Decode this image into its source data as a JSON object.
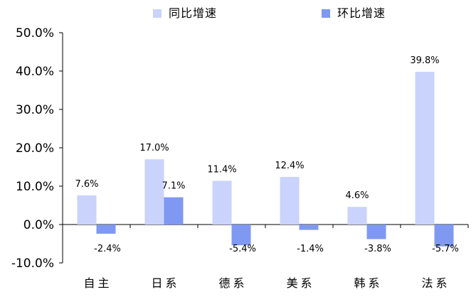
{
  "chart_data": {
    "type": "bar",
    "categories": [
      "自主",
      "日系",
      "德系",
      "美系",
      "韩系",
      "法系"
    ],
    "series": [
      {
        "name": "同比增速",
        "values": [
          7.6,
          17.0,
          11.4,
          12.4,
          4.6,
          39.8
        ],
        "labels": [
          "7.6%",
          "17.0%",
          "11.4%",
          "12.4%",
          "4.6%",
          "39.8%"
        ],
        "color": "#c9d3fb"
      },
      {
        "name": "环比增速",
        "values": [
          -2.4,
          7.1,
          -5.4,
          -1.4,
          -3.8,
          -5.7
        ],
        "labels": [
          "-2.4%",
          "7.1%",
          "-5.4%",
          "-1.4%",
          "-3.8%",
          "-5.7%"
        ],
        "color": "#7f98f2"
      }
    ],
    "ylim": [
      -10,
      50
    ],
    "yticks": [
      "50.0%",
      "40.0%",
      "30.0%",
      "20.0%",
      "10.0%",
      "0.0%",
      "-10.0%"
    ],
    "ytick_values": [
      50,
      40,
      30,
      20,
      10,
      0,
      -10
    ],
    "title": "",
    "xlabel": "",
    "ylabel": "",
    "grid": false,
    "legend_position": "top"
  }
}
